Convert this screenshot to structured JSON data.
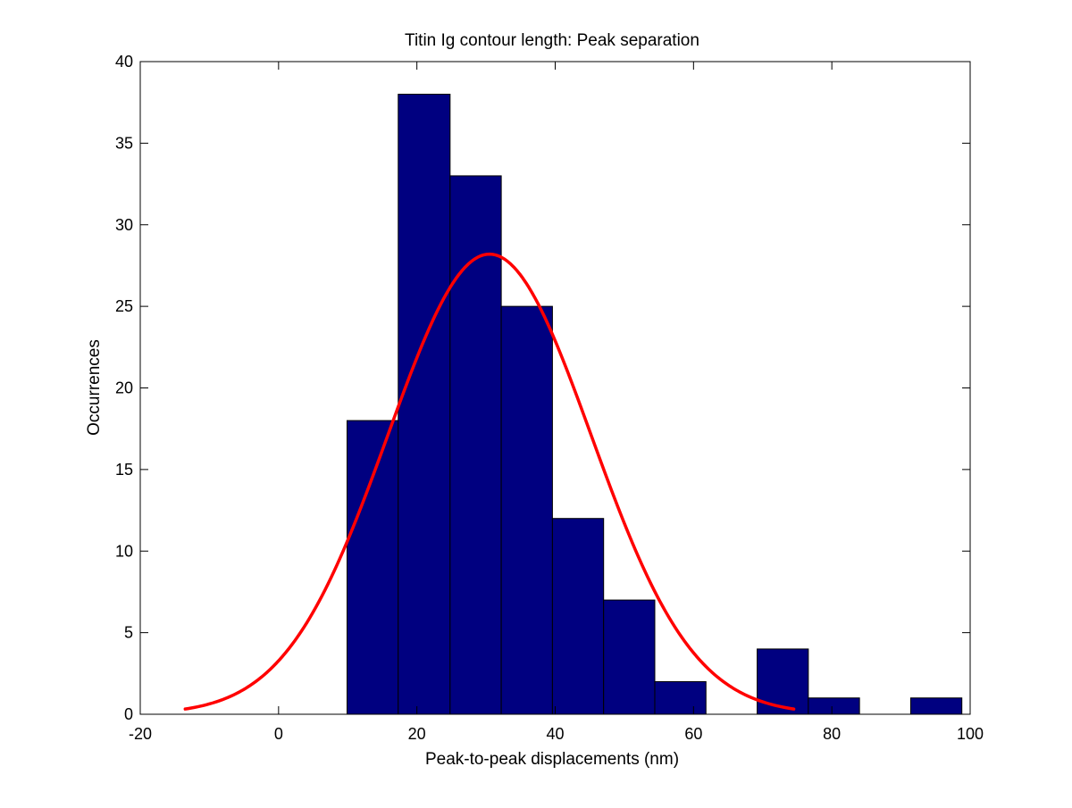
{
  "chart_data": {
    "type": "bar",
    "title": "Titin Ig contour length: Peak separation",
    "xlabel": "Peak-to-peak displacements (nm)",
    "ylabel": "Occurrences",
    "xlim": [
      -20,
      100
    ],
    "ylim": [
      0,
      40
    ],
    "xticks": [
      "-20",
      "0",
      "20",
      "40",
      "60",
      "80",
      "100"
    ],
    "yticks": [
      "0",
      "5",
      "10",
      "15",
      "20",
      "25",
      "30",
      "35",
      "40"
    ],
    "bar_color": "#000080",
    "fit_color": "#ff0000",
    "grid": false,
    "bins": [
      {
        "x0": 9.9,
        "x1": 17.3,
        "count": 18
      },
      {
        "x0": 17.3,
        "x1": 24.8,
        "count": 38
      },
      {
        "x0": 24.8,
        "x1": 32.2,
        "count": 33
      },
      {
        "x0": 32.2,
        "x1": 39.6,
        "count": 25
      },
      {
        "x0": 39.6,
        "x1": 47.0,
        "count": 12
      },
      {
        "x0": 47.0,
        "x1": 54.4,
        "count": 7
      },
      {
        "x0": 54.4,
        "x1": 61.8,
        "count": 2
      },
      {
        "x0": 61.8,
        "x1": 69.2,
        "count": 0
      },
      {
        "x0": 69.2,
        "x1": 76.6,
        "count": 4
      },
      {
        "x0": 76.6,
        "x1": 84.0,
        "count": 1
      },
      {
        "x0": 84.0,
        "x1": 91.4,
        "count": 0
      },
      {
        "x0": 91.4,
        "x1": 98.8,
        "count": 1
      }
    ],
    "fit_curve": {
      "type": "gaussian",
      "peak": 28.2,
      "mean": 30.5,
      "sigma": 14.7,
      "x_range": [
        -13.5,
        74.5
      ]
    }
  }
}
